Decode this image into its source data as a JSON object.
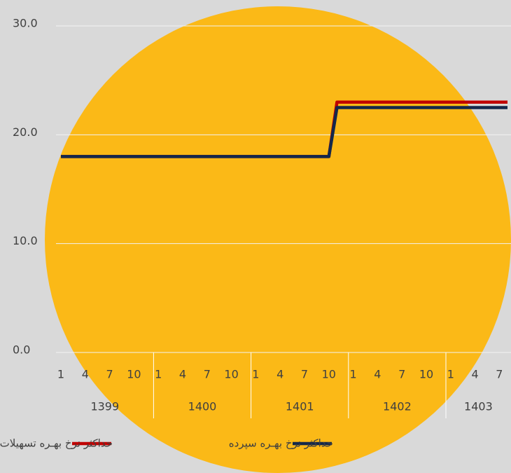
{
  "chart_data": {
    "type": "line",
    "groups": [
      {
        "label": "1399",
        "categories": [
          "1",
          null,
          null,
          "4",
          null,
          null,
          "7",
          null,
          null,
          "10",
          null,
          null
        ]
      },
      {
        "label": "1400",
        "categories": [
          "1",
          null,
          null,
          "4",
          null,
          null,
          "7",
          null,
          null,
          "10",
          null,
          null
        ]
      },
      {
        "label": "1401",
        "categories": [
          "1",
          null,
          null,
          "4",
          null,
          null,
          "7",
          null,
          null,
          "10",
          null,
          null
        ]
      },
      {
        "label": "1402",
        "categories": [
          "1",
          null,
          null,
          "4",
          null,
          null,
          "7",
          null,
          null,
          "10",
          null,
          null
        ]
      },
      {
        "label": "1403",
        "categories": [
          "1",
          null,
          null,
          "4",
          null,
          null,
          "7",
          null
        ]
      }
    ],
    "series": [
      {
        "name": "حداکثر نرخ بهـره تسهیلات",
        "color": "#c00000",
        "values": [
          18,
          18,
          18,
          18,
          18,
          18,
          18,
          18,
          18,
          18,
          18,
          18,
          18,
          18,
          18,
          18,
          18,
          18,
          18,
          18,
          18,
          18,
          18,
          18,
          18,
          18,
          18,
          18,
          18,
          18,
          18,
          18,
          18,
          18,
          23,
          23,
          23,
          23,
          23,
          23,
          23,
          23,
          23,
          23,
          23,
          23,
          23,
          23,
          23,
          23,
          23,
          23,
          23,
          23,
          23,
          23
        ]
      },
      {
        "name": "حداکثر نرخ بهـره سپرده",
        "color": "#14284b",
        "values": [
          18,
          18,
          18,
          18,
          18,
          18,
          18,
          18,
          18,
          18,
          18,
          18,
          18,
          18,
          18,
          18,
          18,
          18,
          18,
          18,
          18,
          18,
          18,
          18,
          18,
          18,
          18,
          18,
          18,
          18,
          18,
          18,
          18,
          18,
          22.5,
          22.5,
          22.5,
          22.5,
          22.5,
          22.5,
          22.5,
          22.5,
          22.5,
          22.5,
          22.5,
          22.5,
          22.5,
          22.5,
          22.5,
          22.5,
          22.5,
          22.5,
          22.5,
          22.5,
          22.5,
          22.5
        ]
      }
    ],
    "ylim": [
      0,
      30
    ],
    "yticks": [
      {
        "value": 0,
        "label": "0.0"
      },
      {
        "value": 10,
        "label": "10.0"
      },
      {
        "value": 20,
        "label": "20.0"
      },
      {
        "value": 30,
        "label": "30.0"
      }
    ],
    "grid": true
  }
}
